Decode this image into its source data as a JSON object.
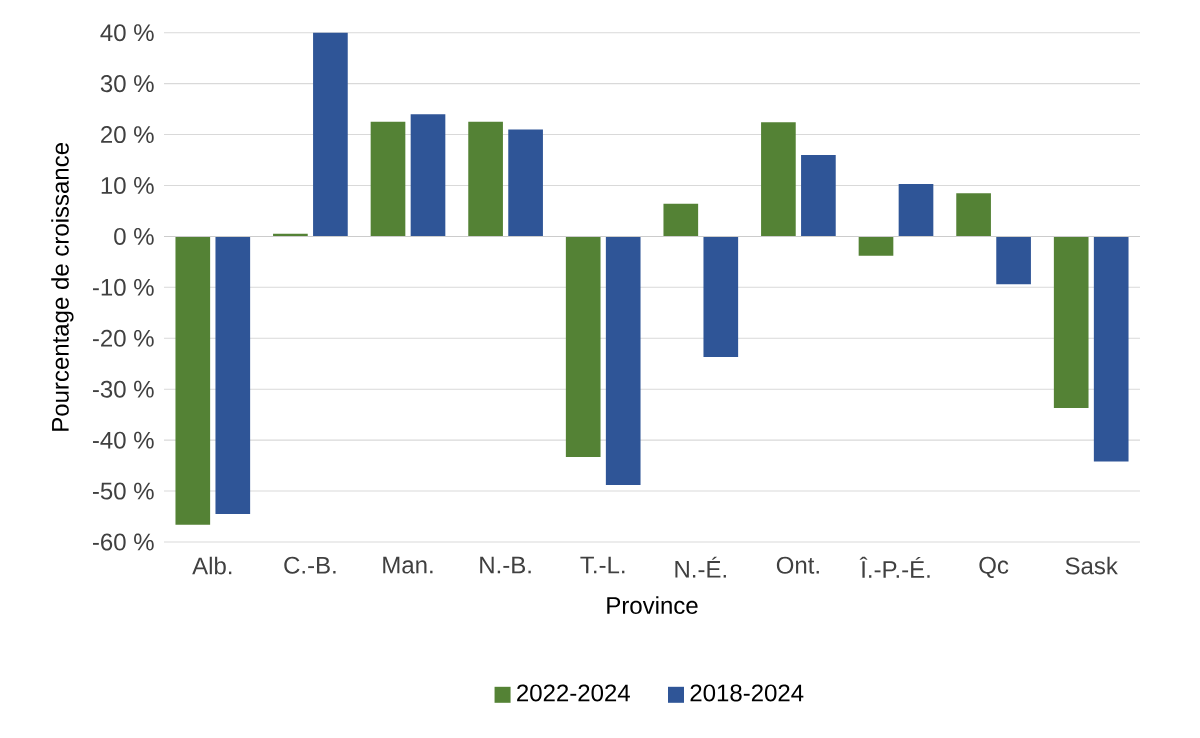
{
  "chart_data": {
    "type": "bar",
    "xlabel": "Province",
    "ylabel": "Pourcentage de croissance",
    "categories": [
      "Alb.",
      "C.-B.",
      "Man.",
      "N.-B.",
      "T.-L.",
      "N.-É.",
      "Ont.",
      "Î.-P.-É.",
      "Qc",
      "Sask"
    ],
    "series": [
      {
        "name": "2022-2024",
        "color": "#548235",
        "values": [
          -56.6,
          0.5,
          22.5,
          22.5,
          -43.3,
          6.4,
          22.4,
          -3.8,
          8.5,
          -33.7
        ]
      },
      {
        "name": "2018-2024",
        "color": "#2f5597",
        "values": [
          -54.5,
          40,
          24,
          21,
          -48.8,
          -23.7,
          16,
          10.3,
          -9.4,
          -44.2
        ]
      }
    ],
    "ylim": [
      -60,
      40
    ],
    "yticks": [
      {
        "value": -60,
        "label": "-60 %"
      },
      {
        "value": -50,
        "label": "-50 %"
      },
      {
        "value": -40,
        "label": "-40 %"
      },
      {
        "value": -30,
        "label": "-30 %"
      },
      {
        "value": -20,
        "label": "-20 %"
      },
      {
        "value": -10,
        "label": "-10 %"
      },
      {
        "value": 0,
        "label": "0 %"
      },
      {
        "value": 10,
        "label": "10 %"
      },
      {
        "value": 20,
        "label": "20 %"
      },
      {
        "value": 30,
        "label": "30 %"
      },
      {
        "value": 40,
        "label": "40 %"
      }
    ],
    "grid": "y",
    "legend": "bottom"
  }
}
